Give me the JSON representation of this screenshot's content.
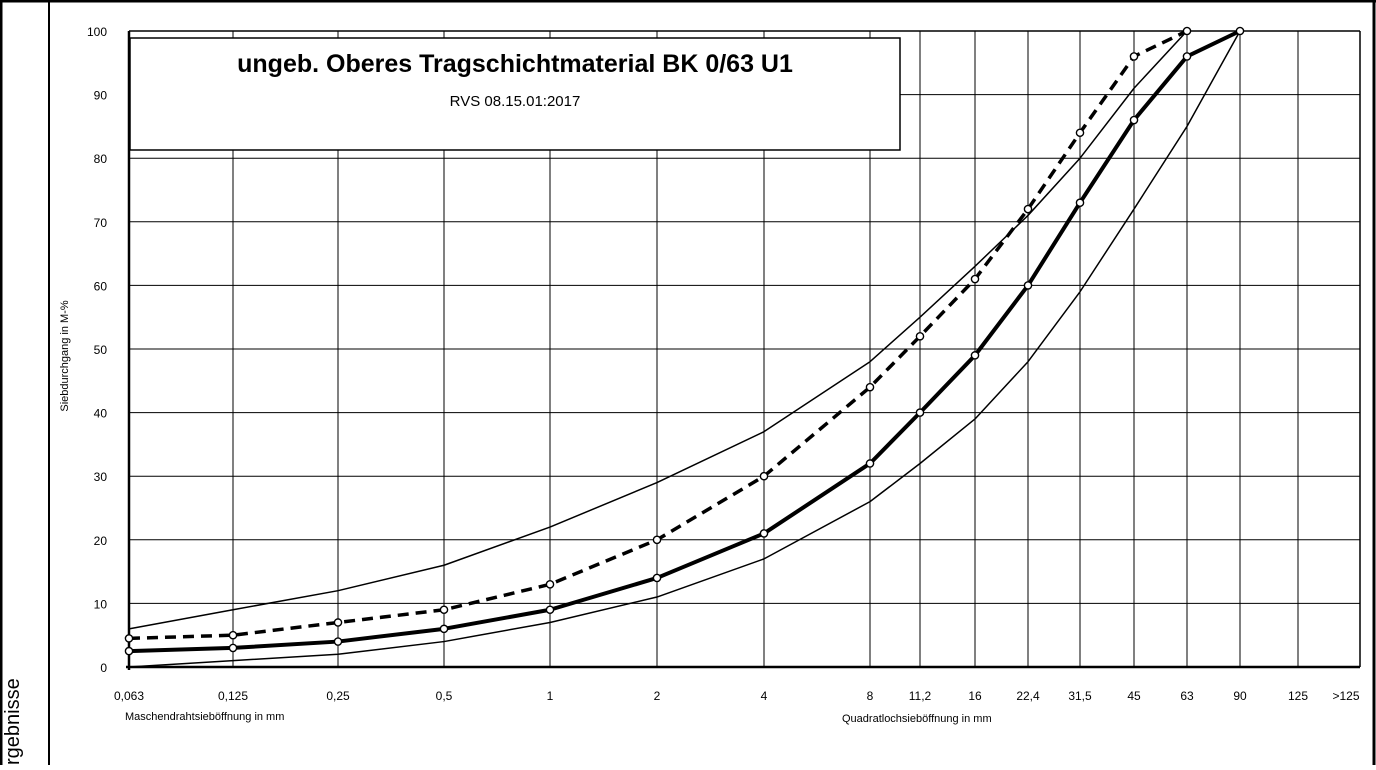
{
  "side_label": "rgebnisse",
  "chart_data": {
    "type": "line",
    "title": "ungeb. Oberes Tragschichtmaterial BK 0/63 U1",
    "subtitle": "RVS 08.15.01:2017",
    "ylabel": "Siebdurchgang in M-%",
    "xlabel_left": "Maschendrahtsieböffnung in mm",
    "xlabel_right": "Quadratlochsieböffnung in mm",
    "x_ticks": [
      "0,063",
      "0,125",
      "0,25",
      "0,5",
      "1",
      "2",
      "4",
      "8",
      "11,2",
      "16",
      "22,4",
      "31,5",
      "45",
      "63",
      "90",
      "125",
      ">125"
    ],
    "y_ticks": [
      0,
      10,
      20,
      30,
      40,
      50,
      60,
      70,
      80,
      90,
      100
    ],
    "ylim": [
      0,
      100
    ],
    "grid": true,
    "series": [
      {
        "style": "thin",
        "x": [
          "0,063",
          "0,125",
          "0,25",
          "0,5",
          "1",
          "2",
          "4",
          "8",
          "11,2",
          "16",
          "22,4",
          "31,5",
          "45",
          "63"
        ],
        "values": [
          6,
          9,
          12,
          16,
          22,
          29,
          37,
          48,
          55,
          63,
          71,
          80,
          91,
          100
        ]
      },
      {
        "style": "thin",
        "x": [
          "0,063",
          "0,125",
          "0,25",
          "0,5",
          "1",
          "2",
          "4",
          "8",
          "11,2",
          "16",
          "22,4",
          "31,5",
          "45",
          "63",
          "90"
        ],
        "values": [
          0,
          1,
          2,
          4,
          7,
          11,
          17,
          26,
          32,
          39,
          48,
          59,
          72,
          85,
          100
        ]
      },
      {
        "style": "bold",
        "x": [
          "0,063",
          "0,125",
          "0,25",
          "0,5",
          "1",
          "2",
          "4",
          "8",
          "11,2",
          "16",
          "22,4",
          "31,5",
          "45",
          "63",
          "90"
        ],
        "values": [
          2.5,
          3,
          4,
          6,
          9,
          14,
          21,
          32,
          40,
          49,
          60,
          73,
          86,
          96,
          100
        ]
      },
      {
        "style": "dashed",
        "x": [
          "0,063",
          "0,125",
          "0,25",
          "0,5",
          "1",
          "2",
          "4",
          "8",
          "11,2",
          "16",
          "22,4",
          "31,5",
          "45",
          "63"
        ],
        "values": [
          4.5,
          5,
          7,
          9,
          13,
          20,
          30,
          44,
          52,
          61,
          72,
          84,
          96,
          100
        ]
      }
    ]
  }
}
